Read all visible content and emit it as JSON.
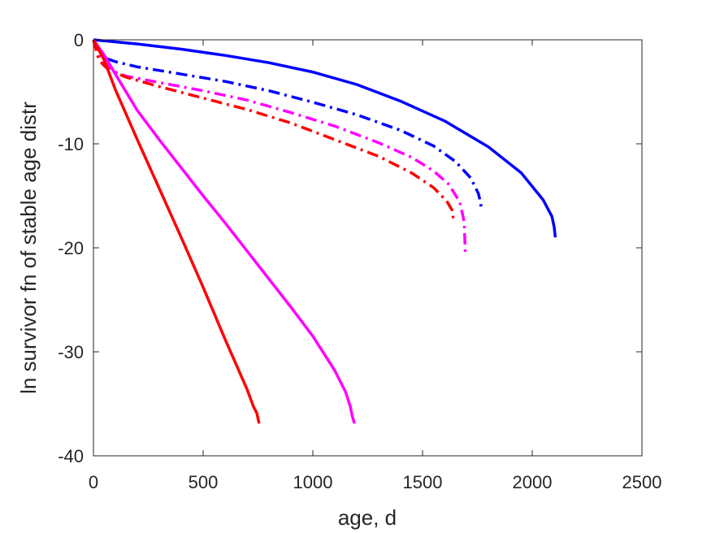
{
  "chart_data": {
    "type": "line",
    "xlabel": "age, d",
    "ylabel": "ln survivor fn of stable age distr",
    "xlim": [
      0,
      2500
    ],
    "ylim": [
      -40,
      0
    ],
    "xticks": [
      "0",
      "500",
      "1000",
      "1500",
      "2000",
      "2500"
    ],
    "yticks": [
      "0",
      "-10",
      "-20",
      "-30",
      "-40"
    ],
    "grid": false,
    "legend": "none",
    "series": [
      {
        "color": "#0000ff",
        "style": "solid",
        "x": [
          0,
          200,
          400,
          600,
          800,
          1000,
          1200,
          1400,
          1600,
          1800,
          1950,
          2050,
          2090,
          2100,
          2105
        ],
        "y": [
          0,
          -0.4,
          -0.9,
          -1.5,
          -2.2,
          -3.1,
          -4.3,
          -5.9,
          -7.8,
          -10.3,
          -12.8,
          -15.4,
          -17.0,
          -18.0,
          -19.0
        ]
      },
      {
        "color": "#0000ff",
        "style": "dashdot",
        "x": [
          0,
          30,
          60,
          100,
          200,
          400,
          600,
          800,
          1000,
          1200,
          1400,
          1550,
          1650,
          1720,
          1755,
          1765,
          1768
        ],
        "y": [
          0,
          -1.2,
          -1.8,
          -2.1,
          -2.6,
          -3.3,
          -4.0,
          -4.9,
          -6.0,
          -7.2,
          -8.7,
          -10.2,
          -11.7,
          -13.3,
          -14.8,
          -15.7,
          -16.3
        ]
      },
      {
        "color": "#ff00ff",
        "style": "dashdot",
        "x": [
          0,
          30,
          60,
          100,
          150,
          300,
          500,
          700,
          900,
          1100,
          1300,
          1450,
          1550,
          1620,
          1670,
          1690,
          1695
        ],
        "y": [
          0,
          -1.6,
          -2.4,
          -3.1,
          -3.5,
          -4.1,
          -4.9,
          -5.8,
          -7.0,
          -8.3,
          -9.9,
          -11.3,
          -12.6,
          -13.9,
          -15.6,
          -17.5,
          -20.7
        ]
      },
      {
        "color": "#ff0000",
        "style": "dashdot",
        "x": [
          0,
          20,
          40,
          60,
          80,
          150,
          300,
          500,
          700,
          900,
          1100,
          1300,
          1450,
          1550,
          1610,
          1635,
          1640
        ],
        "y": [
          0,
          -1.6,
          -2.3,
          -2.7,
          -3.0,
          -3.6,
          -4.5,
          -5.6,
          -6.7,
          -8.0,
          -9.6,
          -11.2,
          -12.8,
          -14.2,
          -15.5,
          -16.4,
          -17.2
        ]
      },
      {
        "color": "#ff00ff",
        "style": "solid",
        "x": [
          0,
          50,
          100,
          200,
          300,
          400,
          500,
          600,
          700,
          800,
          900,
          1000,
          1100,
          1150,
          1170,
          1180,
          1190
        ],
        "y": [
          0,
          -1.5,
          -3.3,
          -6.8,
          -9.6,
          -12.3,
          -15.0,
          -17.6,
          -20.3,
          -23.0,
          -25.7,
          -28.5,
          -31.8,
          -33.9,
          -35.2,
          -36.2,
          -36.9
        ]
      },
      {
        "color": "#ff0000",
        "style": "solid",
        "x": [
          0,
          50,
          100,
          200,
          300,
          400,
          500,
          600,
          700,
          730,
          745,
          750,
          755
        ],
        "y": [
          0,
          -2.0,
          -4.8,
          -9.6,
          -14.3,
          -19.0,
          -23.8,
          -28.8,
          -33.6,
          -35.3,
          -35.9,
          -36.4,
          -36.9
        ]
      }
    ]
  }
}
